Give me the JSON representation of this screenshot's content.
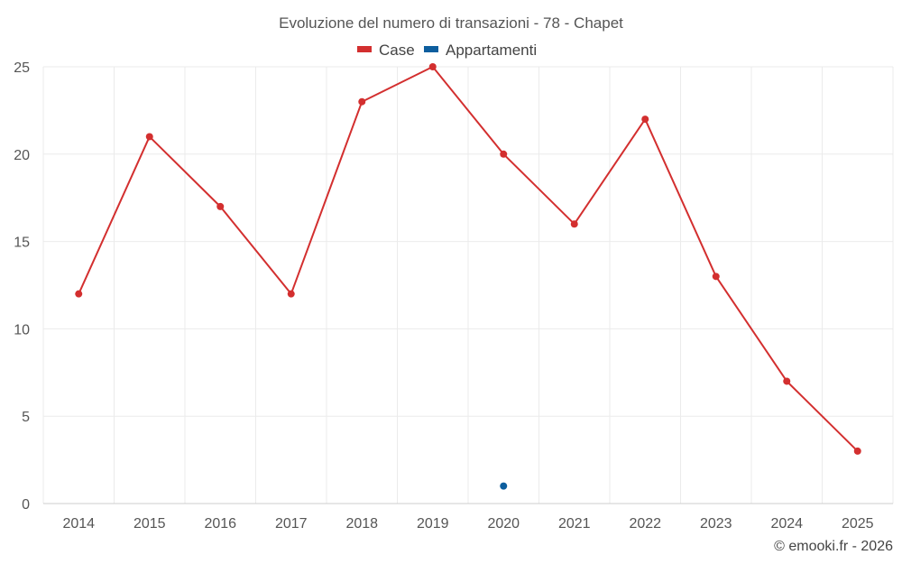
{
  "chart_data": {
    "type": "line",
    "title": "Evoluzione del numero di transazioni - 78 - Chapet",
    "xlabel": "",
    "ylabel": "",
    "categories": [
      "2014",
      "2015",
      "2016",
      "2017",
      "2018",
      "2019",
      "2020",
      "2021",
      "2022",
      "2023",
      "2024",
      "2025"
    ],
    "ylim": [
      0,
      25
    ],
    "yticks": [
      0,
      5,
      10,
      15,
      20,
      25
    ],
    "grid": true,
    "legend_position": "top-center",
    "series": [
      {
        "name": "Case",
        "color": "#d32f2f",
        "values": [
          12,
          21,
          17,
          12,
          23,
          25,
          20,
          16,
          22,
          13,
          7,
          3
        ]
      },
      {
        "name": "Appartamenti",
        "color": "#0d5e9e",
        "values": [
          null,
          null,
          null,
          null,
          null,
          null,
          1,
          null,
          null,
          null,
          null,
          null
        ]
      }
    ]
  },
  "credit": "© emooki.fr - 2026"
}
